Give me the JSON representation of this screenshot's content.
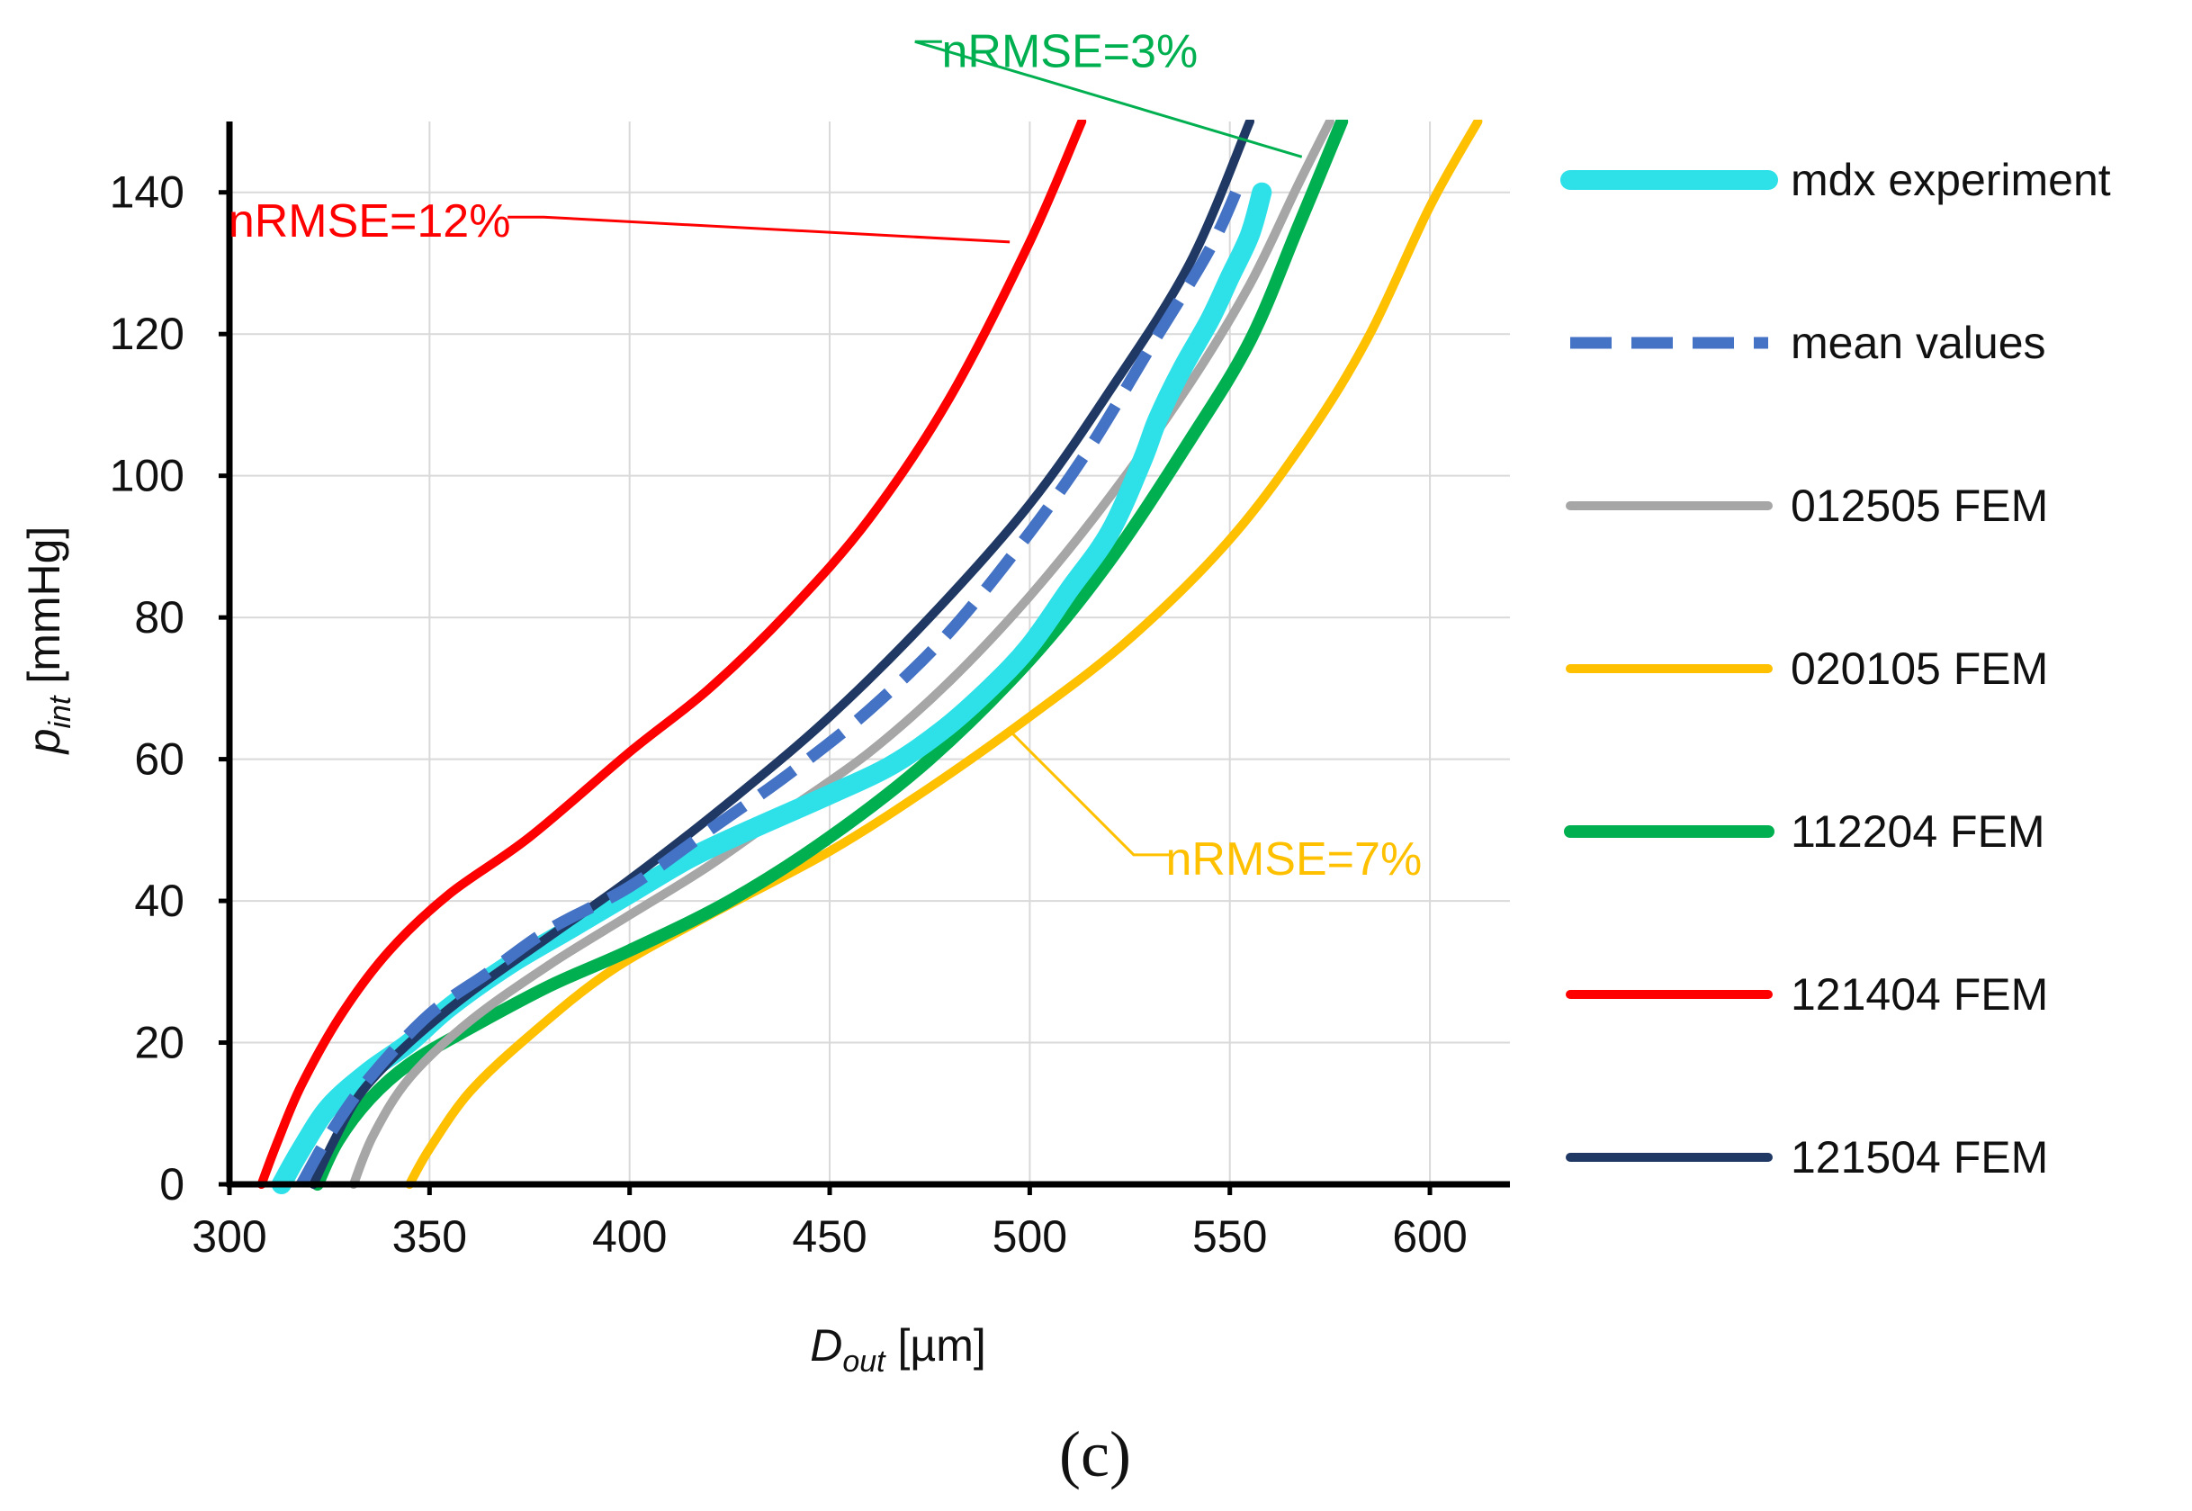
{
  "chart_data": {
    "type": "line",
    "xlabel": {
      "main": "D",
      "sub": "out",
      "unit": " [µm]"
    },
    "ylabel": {
      "main": "p",
      "sub": "int",
      "unit": " [mmHg]"
    },
    "xlim": [
      300,
      620
    ],
    "ylim": [
      0,
      150
    ],
    "xticks": [
      300,
      350,
      400,
      450,
      500,
      550,
      600
    ],
    "yticks": [
      0,
      20,
      40,
      60,
      80,
      100,
      120,
      140
    ],
    "grid": true,
    "legend_position": "right",
    "panel_label": "(c)",
    "series": [
      {
        "name": "mdx experiment",
        "color": "#2EE0E8",
        "style": "solid",
        "width": 22,
        "points": [
          [
            313,
            0
          ],
          [
            318,
            5
          ],
          [
            325,
            11
          ],
          [
            335,
            16
          ],
          [
            345,
            20
          ],
          [
            355,
            25
          ],
          [
            370,
            31
          ],
          [
            385,
            36
          ],
          [
            400,
            41
          ],
          [
            415,
            46
          ],
          [
            430,
            50
          ],
          [
            450,
            55
          ],
          [
            465,
            59
          ],
          [
            478,
            64
          ],
          [
            490,
            70
          ],
          [
            500,
            76
          ],
          [
            510,
            84
          ],
          [
            520,
            92
          ],
          [
            528,
            102
          ],
          [
            532,
            108
          ],
          [
            538,
            115
          ],
          [
            545,
            122
          ],
          [
            550,
            128
          ],
          [
            555,
            134
          ],
          [
            558,
            140
          ]
        ]
      },
      {
        "name": "mean values",
        "color": "#4472C4",
        "style": "dashed",
        "width": 13,
        "points": [
          [
            318,
            0
          ],
          [
            325,
            7
          ],
          [
            335,
            15
          ],
          [
            350,
            24
          ],
          [
            365,
            30
          ],
          [
            380,
            36
          ],
          [
            400,
            42
          ],
          [
            420,
            50
          ],
          [
            440,
            58
          ],
          [
            460,
            67
          ],
          [
            480,
            78
          ],
          [
            500,
            92
          ],
          [
            515,
            104
          ],
          [
            530,
            118
          ],
          [
            545,
            132
          ],
          [
            553,
            142
          ]
        ]
      },
      {
        "name": "012505 FEM",
        "color": "#A6A6A6",
        "style": "solid",
        "width": 10,
        "points": [
          [
            331,
            0
          ],
          [
            336,
            7
          ],
          [
            345,
            15
          ],
          [
            360,
            23
          ],
          [
            380,
            31
          ],
          [
            400,
            38
          ],
          [
            420,
            45
          ],
          [
            440,
            53
          ],
          [
            460,
            61
          ],
          [
            480,
            71
          ],
          [
            500,
            83
          ],
          [
            520,
            97
          ],
          [
            540,
            113
          ],
          [
            555,
            127
          ],
          [
            567,
            141
          ],
          [
            575,
            150
          ]
        ]
      },
      {
        "name": "020105 FEM",
        "color": "#FFC000",
        "style": "solid",
        "width": 10,
        "points": [
          [
            345,
            0
          ],
          [
            350,
            5
          ],
          [
            360,
            13
          ],
          [
            375,
            21
          ],
          [
            395,
            30
          ],
          [
            420,
            38
          ],
          [
            450,
            47
          ],
          [
            475,
            56
          ],
          [
            500,
            66
          ],
          [
            525,
            77
          ],
          [
            550,
            91
          ],
          [
            570,
            106
          ],
          [
            585,
            120
          ],
          [
            600,
            138
          ],
          [
            612,
            150
          ]
        ]
      },
      {
        "name": "112204 FEM",
        "color": "#00B050",
        "style": "solid",
        "width": 14,
        "points": [
          [
            322,
            0
          ],
          [
            327,
            6
          ],
          [
            335,
            12
          ],
          [
            345,
            17
          ],
          [
            360,
            22
          ],
          [
            380,
            28
          ],
          [
            400,
            33
          ],
          [
            425,
            40
          ],
          [
            450,
            49
          ],
          [
            475,
            60
          ],
          [
            500,
            74
          ],
          [
            520,
            88
          ],
          [
            540,
            105
          ],
          [
            555,
            119
          ],
          [
            567,
            135
          ],
          [
            578,
            150
          ]
        ]
      },
      {
        "name": "121404 FEM",
        "color": "#FF0000",
        "style": "solid",
        "width": 10,
        "points": [
          [
            308,
            0
          ],
          [
            312,
            6
          ],
          [
            318,
            14
          ],
          [
            328,
            24
          ],
          [
            340,
            33
          ],
          [
            355,
            41
          ],
          [
            375,
            49
          ],
          [
            400,
            61
          ],
          [
            420,
            70
          ],
          [
            440,
            81
          ],
          [
            460,
            94
          ],
          [
            480,
            111
          ],
          [
            500,
            133
          ],
          [
            513,
            150
          ]
        ]
      },
      {
        "name": "121504 FEM",
        "color": "#203864",
        "style": "solid",
        "width": 10,
        "points": [
          [
            321,
            0
          ],
          [
            326,
            6
          ],
          [
            333,
            13
          ],
          [
            345,
            20
          ],
          [
            360,
            27
          ],
          [
            380,
            35
          ],
          [
            400,
            43
          ],
          [
            425,
            54
          ],
          [
            450,
            66
          ],
          [
            475,
            80
          ],
          [
            500,
            96
          ],
          [
            520,
            112
          ],
          [
            540,
            130
          ],
          [
            555,
            150
          ]
        ]
      }
    ],
    "baselines": [
      {
        "color": "#FF0000",
        "x": [
          306,
          322
        ]
      },
      {
        "color": "#2E75B6",
        "x": [
          320,
          435
        ]
      }
    ],
    "annotations": [
      {
        "text": "nRMSE=12%",
        "color": "#FF0000",
        "text_at": [
          335,
          136
        ],
        "point_to": [
          495,
          133
        ]
      },
      {
        "text": "nRMSE=3%",
        "color": "#00B050",
        "text_at": [
          510,
          160
        ],
        "point_to": [
          568,
          145
        ]
      },
      {
        "text": "nRMSE=7%",
        "color": "#FFC000",
        "text_at": [
          566,
          46
        ],
        "point_to": [
          495,
          64
        ]
      }
    ]
  }
}
